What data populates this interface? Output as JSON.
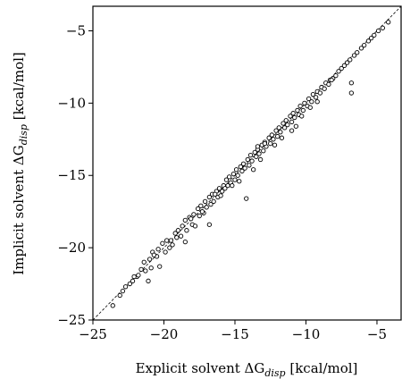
{
  "chart_data": {
    "type": "scatter",
    "title": "",
    "xlabel": {
      "prefix": "Explicit solvent ΔG",
      "sub": "disp",
      "suffix": " [kcal/mol]"
    },
    "ylabel": {
      "prefix": "Implicit solvent ΔG",
      "sub": "disp",
      "suffix": " [kcal/mol]"
    },
    "xlim": [
      -25,
      -3.3
    ],
    "ylim": [
      -25,
      -3.3
    ],
    "xticks": [
      -25,
      -20,
      -15,
      -10,
      -5
    ],
    "yticks": [
      -25,
      -20,
      -15,
      -10,
      -5
    ],
    "xtick_labels": [
      "−25",
      "−20",
      "−15",
      "−10",
      "−5"
    ],
    "ytick_labels": [
      "−25",
      "−20",
      "−15",
      "−10",
      "−5"
    ],
    "grid": false,
    "reference_line": {
      "style": "dashed",
      "from": [
        -25,
        -25
      ],
      "to": [
        -3.3,
        -3.3
      ]
    },
    "marker": "open-circle",
    "points": [
      [
        -23.6,
        -24.0
      ],
      [
        -23.1,
        -23.3
      ],
      [
        -22.9,
        -23.0
      ],
      [
        -22.7,
        -22.7
      ],
      [
        -22.4,
        -22.5
      ],
      [
        -22.2,
        -22.3
      ],
      [
        -21.9,
        -22.0
      ],
      [
        -21.6,
        -21.5
      ],
      [
        -21.4,
        -21.0
      ],
      [
        -21.3,
        -21.6
      ],
      [
        -21.0,
        -20.8
      ],
      [
        -20.9,
        -21.4
      ],
      [
        -20.8,
        -20.3
      ],
      [
        -20.5,
        -20.6
      ],
      [
        -20.4,
        -20.1
      ],
      [
        -20.1,
        -19.7
      ],
      [
        -19.9,
        -20.3
      ],
      [
        -19.8,
        -19.5
      ],
      [
        -19.5,
        -19.5
      ],
      [
        -19.4,
        -19.8
      ],
      [
        -19.2,
        -19.0
      ],
      [
        -19.0,
        -18.8
      ],
      [
        -18.8,
        -19.2
      ],
      [
        -18.7,
        -18.5
      ],
      [
        -18.5,
        -18.1
      ],
      [
        -18.4,
        -18.8
      ],
      [
        -18.2,
        -17.9
      ],
      [
        -18.0,
        -18.4
      ],
      [
        -17.9,
        -17.7
      ],
      [
        -17.8,
        -18.5
      ],
      [
        -17.6,
        -17.3
      ],
      [
        -17.5,
        -17.8
      ],
      [
        -17.4,
        -17.1
      ],
      [
        -17.2,
        -17.6
      ],
      [
        -17.1,
        -16.8
      ],
      [
        -17.0,
        -17.2
      ],
      [
        -16.8,
        -16.5
      ],
      [
        -16.7,
        -17.0
      ],
      [
        -16.6,
        -16.3
      ],
      [
        -16.5,
        -16.8
      ],
      [
        -16.3,
        -16.1
      ],
      [
        -16.2,
        -16.5
      ],
      [
        -16.1,
        -15.9
      ],
      [
        -16.0,
        -16.4
      ],
      [
        -15.8,
        -15.7
      ],
      [
        -15.7,
        -15.9
      ],
      [
        -15.6,
        -15.3
      ],
      [
        -15.5,
        -15.7
      ],
      [
        -15.4,
        -15.1
      ],
      [
        -15.3,
        -15.5
      ],
      [
        -15.1,
        -14.9
      ],
      [
        -15.0,
        -15.3
      ],
      [
        -14.9,
        -14.6
      ],
      [
        -14.8,
        -15.0
      ],
      [
        -14.6,
        -14.4
      ],
      [
        -14.5,
        -14.7
      ],
      [
        -14.4,
        -14.2
      ],
      [
        -14.3,
        -14.5
      ],
      [
        -14.1,
        -13.9
      ],
      [
        -14.0,
        -14.3
      ],
      [
        -13.9,
        -13.6
      ],
      [
        -13.8,
        -14.0
      ],
      [
        -13.6,
        -13.4
      ],
      [
        -13.5,
        -13.7
      ],
      [
        -13.4,
        -13.2
      ],
      [
        -13.3,
        -13.5
      ],
      [
        -13.1,
        -12.9
      ],
      [
        -13.0,
        -13.3
      ],
      [
        -12.9,
        -12.7
      ],
      [
        -12.8,
        -13.0
      ],
      [
        -12.6,
        -12.4
      ],
      [
        -12.5,
        -12.8
      ],
      [
        -12.4,
        -12.2
      ],
      [
        -12.3,
        -12.5
      ],
      [
        -12.1,
        -11.9
      ],
      [
        -12.0,
        -12.3
      ],
      [
        -11.9,
        -11.7
      ],
      [
        -11.8,
        -12.0
      ],
      [
        -11.6,
        -11.4
      ],
      [
        -11.5,
        -11.7
      ],
      [
        -11.4,
        -11.2
      ],
      [
        -11.3,
        -11.5
      ],
      [
        -11.1,
        -10.9
      ],
      [
        -11.0,
        -11.3
      ],
      [
        -10.9,
        -10.7
      ],
      [
        -10.8,
        -11.0
      ],
      [
        -10.6,
        -10.5
      ],
      [
        -10.5,
        -10.8
      ],
      [
        -10.4,
        -10.2
      ],
      [
        -10.2,
        -10.5
      ],
      [
        -10.1,
        -10.0
      ],
      [
        -9.9,
        -10.2
      ],
      [
        -9.8,
        -9.7
      ],
      [
        -9.6,
        -9.9
      ],
      [
        -9.5,
        -9.4
      ],
      [
        -9.3,
        -9.6
      ],
      [
        -9.2,
        -9.2
      ],
      [
        -9.0,
        -9.3
      ],
      [
        -8.9,
        -8.9
      ],
      [
        -8.7,
        -9.0
      ],
      [
        -8.6,
        -8.6
      ],
      [
        -8.4,
        -8.7
      ],
      [
        -8.3,
        -8.4
      ],
      [
        -8.1,
        -8.3
      ],
      [
        -7.9,
        -8.1
      ],
      [
        -7.7,
        -7.8
      ],
      [
        -7.5,
        -7.6
      ],
      [
        -7.3,
        -7.4
      ],
      [
        -7.1,
        -7.2
      ],
      [
        -6.9,
        -7.0
      ],
      [
        -6.6,
        -6.7
      ],
      [
        -6.4,
        -6.5
      ],
      [
        -6.1,
        -6.2
      ],
      [
        -5.9,
        -6.0
      ],
      [
        -5.6,
        -5.7
      ],
      [
        -5.4,
        -5.5
      ],
      [
        -5.2,
        -5.3
      ],
      [
        -4.9,
        -5.0
      ],
      [
        -4.6,
        -4.8
      ],
      [
        -4.2,
        -4.4
      ],
      [
        -6.8,
        -9.3
      ],
      [
        -6.8,
        -8.6
      ],
      [
        -13.4,
        -13.0
      ],
      [
        -12.9,
        -12.8
      ],
      [
        -14.2,
        -16.6
      ],
      [
        -16.8,
        -18.4
      ],
      [
        -11.0,
        -11.9
      ],
      [
        -9.2,
        -9.9
      ],
      [
        -18.5,
        -19.6
      ],
      [
        -21.1,
        -22.3
      ],
      [
        -20.3,
        -21.3
      ],
      [
        -22.1,
        -22.0
      ],
      [
        -19.6,
        -20.0
      ],
      [
        -16.4,
        -16.3
      ],
      [
        -15.2,
        -15.7
      ],
      [
        -13.7,
        -14.6
      ],
      [
        -12.2,
        -12.9
      ],
      [
        -10.7,
        -11.6
      ],
      [
        -9.7,
        -10.3
      ],
      [
        -8.2,
        -8.4
      ],
      [
        -17.3,
        -17.5
      ],
      [
        -14.7,
        -15.4
      ],
      [
        -13.2,
        -13.9
      ],
      [
        -11.7,
        -12.4
      ],
      [
        -10.3,
        -10.9
      ],
      [
        -15.9,
        -16.1
      ],
      [
        -18.1,
        -18.0
      ],
      [
        -19.1,
        -19.3
      ],
      [
        -20.7,
        -20.5
      ],
      [
        -21.8,
        -21.9
      ]
    ]
  }
}
